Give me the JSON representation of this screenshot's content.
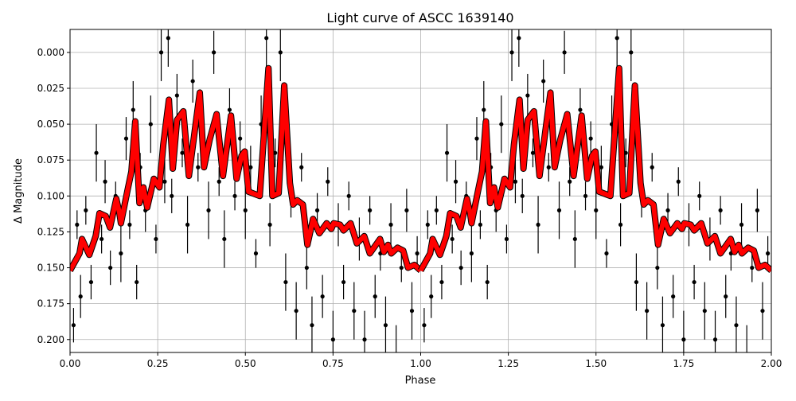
{
  "chart_data": {
    "type": "scatter",
    "title": "Light curve of ASCC 1639140",
    "xlabel": "Phase",
    "ylabel": "Δ Magnitude",
    "xlim": [
      0,
      2
    ],
    "ylim": [
      0.209,
      -0.016
    ],
    "y_inverted": true,
    "grid": true,
    "xticks": [
      "0.00",
      "0.25",
      "0.50",
      "0.75",
      "1.00",
      "1.25",
      "1.50",
      "1.75",
      "2.00"
    ],
    "yticks": [
      "0.000",
      "0.025",
      "0.050",
      "0.075",
      "0.100",
      "0.125",
      "0.150",
      "0.175",
      "0.200"
    ],
    "phase_repeated_twice": true,
    "colors": {
      "data": "#000000",
      "model": "#ff0000"
    },
    "observations": {
      "phase": [
        0.01,
        0.02,
        0.03,
        0.045,
        0.06,
        0.075,
        0.09,
        0.1,
        0.115,
        0.13,
        0.145,
        0.16,
        0.17,
        0.18,
        0.19,
        0.2,
        0.215,
        0.23,
        0.245,
        0.26,
        0.27,
        0.28,
        0.29,
        0.305,
        0.32,
        0.335,
        0.35,
        0.365,
        0.38,
        0.395,
        0.41,
        0.425,
        0.44,
        0.455,
        0.47,
        0.485,
        0.5,
        0.515,
        0.53,
        0.545,
        0.56,
        0.57,
        0.585,
        0.6,
        0.615,
        0.63,
        0.645,
        0.66,
        0.675,
        0.69,
        0.705,
        0.72,
        0.735,
        0.75,
        0.765,
        0.78,
        0.795,
        0.81,
        0.825,
        0.84,
        0.855,
        0.87,
        0.885,
        0.9,
        0.915,
        0.93,
        0.945,
        0.96,
        0.975,
        0.99
      ],
      "mag": [
        0.19,
        0.12,
        0.17,
        0.11,
        0.16,
        0.07,
        0.13,
        0.09,
        0.15,
        0.1,
        0.14,
        0.06,
        0.12,
        0.04,
        0.16,
        0.08,
        0.11,
        0.05,
        0.13,
        0.0,
        0.09,
        -0.01,
        0.1,
        0.03,
        0.07,
        0.12,
        0.02,
        0.08,
        0.06,
        0.11,
        0.0,
        0.09,
        0.13,
        0.04,
        0.1,
        0.06,
        0.11,
        0.08,
        0.14,
        0.05,
        -0.01,
        0.12,
        0.07,
        0.0,
        0.16,
        0.1,
        0.18,
        0.08,
        0.15,
        0.19,
        0.11,
        0.17,
        0.09,
        0.2,
        0.12,
        0.16,
        0.1,
        0.18,
        0.13,
        0.2,
        0.11,
        0.17,
        0.14,
        0.19,
        0.12,
        0.21,
        0.15,
        0.11,
        0.18,
        0.14
      ],
      "err": [
        0.012,
        0.01,
        0.015,
        0.01,
        0.012,
        0.02,
        0.01,
        0.015,
        0.012,
        0.01,
        0.02,
        0.015,
        0.01,
        0.02,
        0.012,
        0.01,
        0.015,
        0.02,
        0.01,
        0.02,
        0.015,
        0.02,
        0.012,
        0.015,
        0.01,
        0.02,
        0.015,
        0.01,
        0.012,
        0.02,
        0.015,
        0.01,
        0.02,
        0.015,
        0.01,
        0.012,
        0.02,
        0.015,
        0.01,
        0.02,
        0.02,
        0.015,
        0.01,
        0.02,
        0.02,
        0.015,
        0.02,
        0.01,
        0.015,
        0.02,
        0.012,
        0.015,
        0.01,
        0.02,
        0.015,
        0.012,
        0.01,
        0.02,
        0.015,
        0.02,
        0.01,
        0.015,
        0.012,
        0.02,
        0.015,
        0.02,
        0.01,
        0.015,
        0.02,
        0.012
      ]
    },
    "model": {
      "phase": [
        0,
        0.027,
        0.034,
        0.055,
        0.073,
        0.084,
        0.102,
        0.114,
        0.132,
        0.141,
        0.145,
        0.164,
        0.175,
        0.186,
        0.198,
        0.209,
        0.22,
        0.239,
        0.255,
        0.266,
        0.282,
        0.293,
        0.305,
        0.323,
        0.339,
        0.357,
        0.37,
        0.382,
        0.398,
        0.418,
        0.436,
        0.459,
        0.475,
        0.489,
        0.498,
        0.509,
        0.541,
        0.566,
        0.577,
        0.595,
        0.611,
        0.627,
        0.636,
        0.648,
        0.664,
        0.677,
        0.693,
        0.711,
        0.732,
        0.745,
        0.752,
        0.77,
        0.78,
        0.8,
        0.818,
        0.839,
        0.855,
        0.884,
        0.895,
        0.907,
        0.916,
        0.934,
        0.95,
        0.964,
        0.982,
        1.0
      ],
      "mag": [
        0.152,
        0.14,
        0.13,
        0.141,
        0.128,
        0.112,
        0.114,
        0.122,
        0.102,
        0.112,
        0.119,
        0.096,
        0.083,
        0.048,
        0.105,
        0.094,
        0.108,
        0.088,
        0.094,
        0.064,
        0.033,
        0.081,
        0.047,
        0.041,
        0.086,
        0.052,
        0.028,
        0.08,
        0.061,
        0.043,
        0.086,
        0.044,
        0.088,
        0.072,
        0.069,
        0.097,
        0.1,
        0.011,
        0.1,
        0.098,
        0.023,
        0.091,
        0.106,
        0.103,
        0.106,
        0.134,
        0.116,
        0.126,
        0.119,
        0.123,
        0.119,
        0.12,
        0.124,
        0.119,
        0.133,
        0.128,
        0.14,
        0.13,
        0.139,
        0.134,
        0.14,
        0.136,
        0.138,
        0.15,
        0.148,
        0.152
      ]
    }
  }
}
